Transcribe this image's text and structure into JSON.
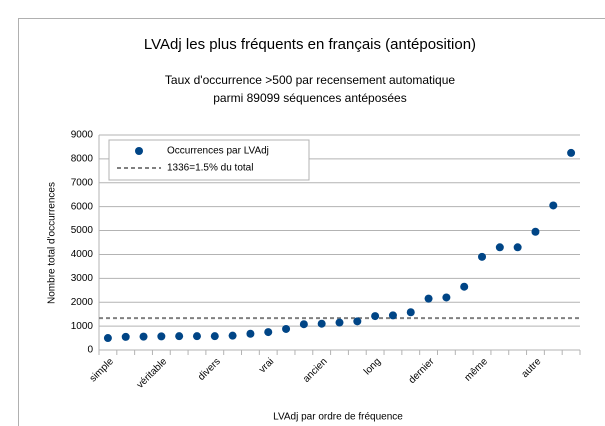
{
  "chart_data": {
    "type": "scatter",
    "title": "LVAdj les plus fréquents en français (antéposition)",
    "subtitle": [
      "Taux d'occurrence >500 par recensement automatique",
      "parmi 89099 séquences antéposées"
    ],
    "x_label": "LVAdj par ordre de fréquence",
    "y_label": "Nombre total d'occurrences",
    "categories": [
      "simple",
      null,
      null,
      "véritable",
      null,
      null,
      "divers",
      null,
      null,
      "vrai",
      null,
      null,
      "ancien",
      null,
      null,
      "long",
      null,
      null,
      "dernier",
      null,
      null,
      "même",
      null,
      null,
      "autre",
      null,
      null
    ],
    "series": [
      {
        "name": "Occurrences par LVAdj",
        "color": "#004586",
        "values": [
          500,
          550,
          560,
          570,
          580,
          580,
          580,
          600,
          680,
          750,
          880,
          1080,
          1100,
          1150,
          1200,
          1420,
          1450,
          1580,
          2150,
          2200,
          2650,
          3900,
          4300,
          4300,
          4950,
          6050,
          8250
        ]
      }
    ],
    "reference_lines": [
      {
        "name": "1336=1.5% du total",
        "value": 1336,
        "color": "#808080"
      }
    ],
    "ylim": [
      0,
      9000
    ],
    "yticks": [
      0,
      1000,
      2000,
      3000,
      4000,
      5000,
      6000,
      7000,
      8000,
      9000
    ],
    "grid": true,
    "legend": "upper left"
  }
}
